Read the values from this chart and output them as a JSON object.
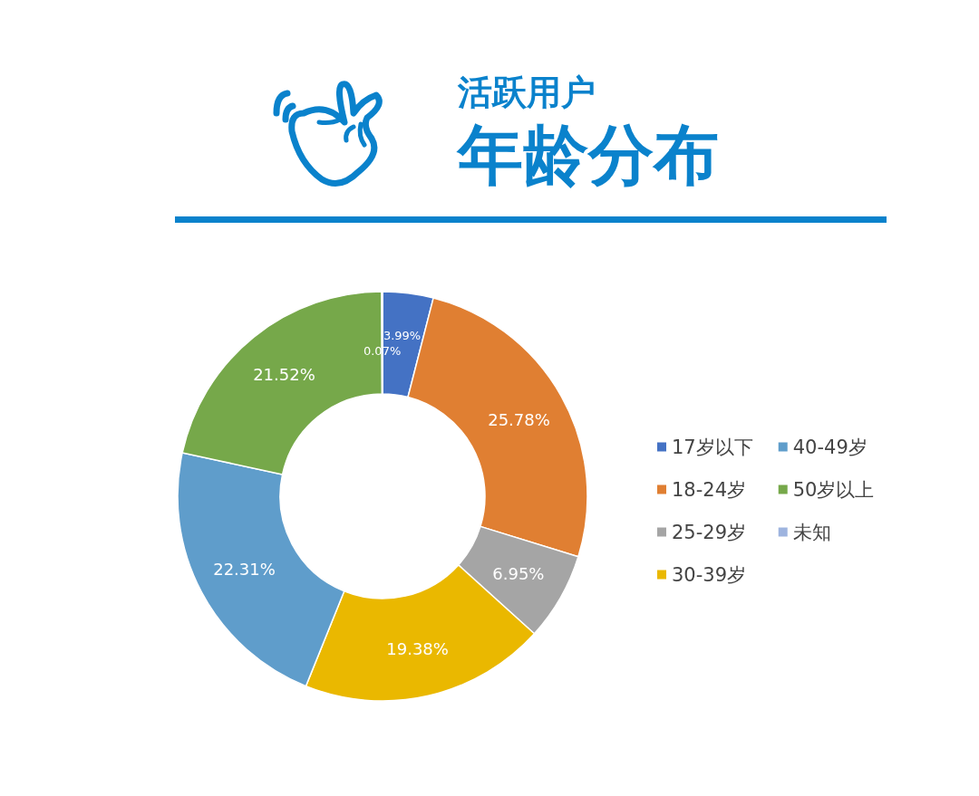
{
  "chart_data": {
    "type": "donut",
    "title": "活跃用户",
    "subtitle": "年龄分布",
    "categories": [
      "17岁以下",
      "18-24岁",
      "25-29岁",
      "30-39岁",
      "40-49岁",
      "50岁以上",
      "未知"
    ],
    "values": [
      3.99,
      25.78,
      6.95,
      19.38,
      22.31,
      21.52,
      0.07
    ],
    "value_labels": [
      "3.99%",
      "25.78%",
      "6.95%",
      "19.38%",
      "22.31%",
      "21.52%",
      "0.07%"
    ],
    "colors": [
      "#4472c4",
      "#e07f32",
      "#a5a5a5",
      "#eab800",
      "#5f9dcb",
      "#76a84a",
      "#9eb4df"
    ],
    "legend": "right"
  }
}
